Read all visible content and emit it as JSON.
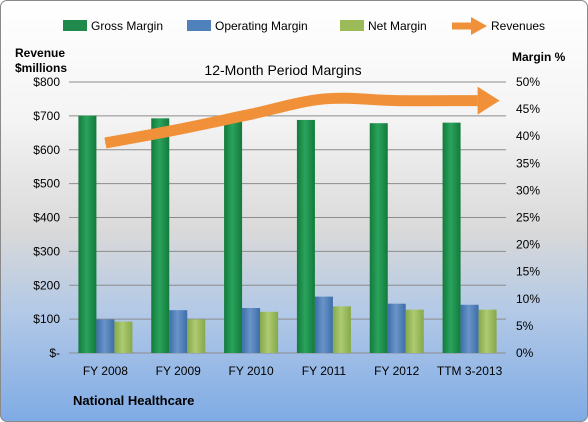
{
  "chart_data": {
    "type": "bar",
    "title": "12-Month Period Margins",
    "company": "National Healthcare",
    "categories": [
      "FY 2008",
      "FY 2009",
      "FY 2010",
      "FY 2011",
      "FY 2012",
      "TTM 3-2013"
    ],
    "left_axis": {
      "label_line1": "Revenue",
      "label_line2": "$millions",
      "min": 0,
      "max": 800,
      "step": 100,
      "tick_labels": [
        "$-",
        "$100",
        "$200",
        "$300",
        "$400",
        "$500",
        "$600",
        "$700",
        "$800"
      ]
    },
    "right_axis": {
      "label": "Margin %",
      "min": 0,
      "max": 50,
      "step": 5,
      "tick_labels": [
        "0%",
        "5%",
        "10%",
        "15%",
        "20%",
        "25%",
        "30%",
        "35%",
        "40%",
        "45%",
        "50%"
      ]
    },
    "series": [
      {
        "name": "Gross Margin",
        "type": "bar",
        "axis": "right",
        "color": "#1f8a4c",
        "values": [
          43.8,
          43.3,
          42.8,
          43.0,
          42.4,
          42.5
        ]
      },
      {
        "name": "Operating Margin",
        "type": "bar",
        "axis": "right",
        "color": "#4f81bd",
        "values": [
          6.2,
          7.9,
          8.3,
          10.4,
          9.1,
          8.9
        ]
      },
      {
        "name": "Net Margin",
        "type": "bar",
        "axis": "right",
        "color": "#9bbb59",
        "values": [
          5.8,
          6.2,
          7.6,
          8.6,
          8.0,
          8.0
        ]
      },
      {
        "name": "Revenues",
        "type": "line",
        "axis": "left",
        "color": "#f0913a",
        "values": [
          620,
          660,
          705,
          750,
          745,
          745
        ]
      }
    ],
    "grid": true,
    "legend_position": "top"
  }
}
